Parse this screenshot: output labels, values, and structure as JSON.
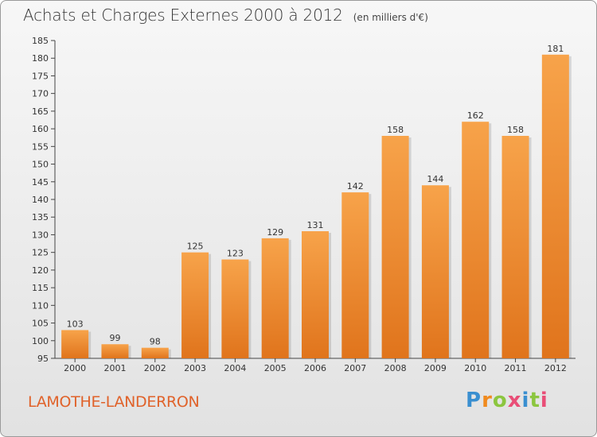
{
  "title": "Achats et Charges Externes 2000 à 2012",
  "unit": "(en milliers d'€)",
  "commune": "LAMOTHE-LANDERRON",
  "logo": {
    "letters": [
      "P",
      "r",
      "o",
      "x",
      "i",
      "t",
      "i"
    ]
  },
  "colors": {
    "bar_top": "#f7a34a",
    "bar_bottom": "#e0741c",
    "axis": "#444444",
    "title": "#333333",
    "commune": "#e0622a"
  },
  "chart_data": {
    "type": "bar",
    "categories": [
      "2000",
      "2001",
      "2002",
      "2003",
      "2004",
      "2005",
      "2006",
      "2007",
      "2008",
      "2009",
      "2010",
      "2011",
      "2012"
    ],
    "values": [
      103,
      99,
      98,
      125,
      123,
      129,
      131,
      142,
      158,
      144,
      162,
      158,
      181
    ],
    "data_labels": [
      "103",
      "99",
      "98",
      "125",
      "123",
      "129",
      "131",
      "142",
      "158",
      "144",
      "162",
      "158",
      "181"
    ],
    "title": "Achats et Charges Externes 2000 à 2012",
    "xlabel": "",
    "ylabel": "",
    "ylim": [
      95,
      185
    ],
    "yticks": [
      95,
      100,
      105,
      110,
      115,
      120,
      125,
      130,
      135,
      140,
      145,
      150,
      155,
      160,
      165,
      170,
      175,
      180,
      185
    ],
    "grid": false,
    "legend": "none"
  }
}
